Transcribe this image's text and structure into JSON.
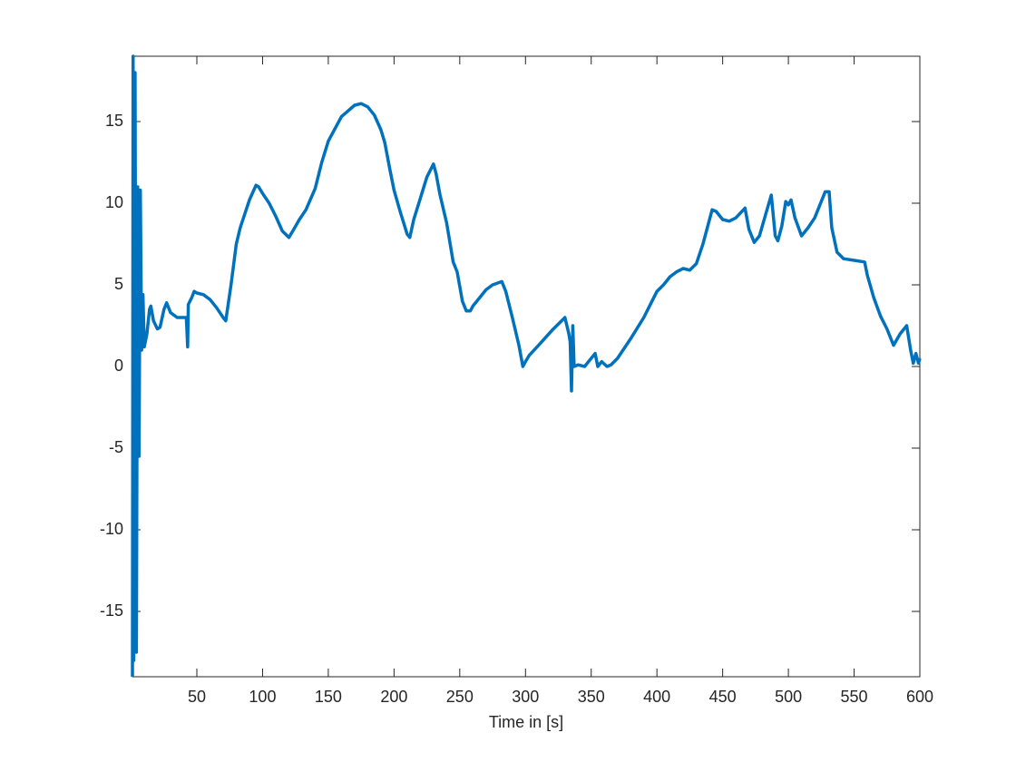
{
  "chart_data": {
    "type": "line",
    "xlabel": "Time in [s]",
    "color": "#0072BD",
    "x": [
      1,
      1.5,
      2,
      3,
      4,
      5,
      6,
      7,
      8,
      9,
      10,
      12,
      14,
      15,
      17,
      20,
      22,
      25,
      27,
      30,
      35,
      42,
      43,
      43.5,
      46,
      48,
      50,
      55,
      60,
      65,
      70,
      72,
      76,
      80,
      83,
      90,
      95,
      97,
      100,
      105,
      110,
      115,
      120,
      123,
      128,
      133,
      140,
      145,
      150,
      160,
      170,
      175,
      180,
      185,
      190,
      193,
      197,
      200,
      205,
      210,
      212,
      215,
      220,
      225,
      230,
      232,
      235,
      240,
      245,
      248,
      252,
      255,
      258,
      260,
      265,
      270,
      275,
      282,
      285,
      290,
      295,
      298,
      300,
      303,
      310,
      320,
      330,
      333,
      334,
      335,
      336,
      337,
      340,
      345,
      350,
      353,
      355,
      358,
      362,
      365,
      370,
      380,
      390,
      400,
      405,
      410,
      415,
      420,
      425,
      430,
      435,
      440,
      442,
      445,
      450,
      455,
      460,
      467,
      470,
      474,
      478,
      483,
      487,
      490,
      492,
      495,
      498,
      500,
      502,
      505,
      510,
      515,
      520,
      528,
      531,
      533,
      537,
      542,
      550,
      558,
      560,
      565,
      570,
      575,
      580,
      585,
      590,
      593,
      595,
      597,
      599,
      600
    ],
    "values": [
      -19,
      19,
      -18,
      18,
      -17.5,
      11,
      -5.5,
      10.8,
      1,
      4.4,
      1.2,
      2,
      3.5,
      3.7,
      2.8,
      2.3,
      2.4,
      3.5,
      3.9,
      3.3,
      3.0,
      3.0,
      1.2,
      3.8,
      4.2,
      4.6,
      4.5,
      4.4,
      4.1,
      3.6,
      3.0,
      2.8,
      5,
      7.5,
      8.5,
      10.2,
      11.1,
      11.0,
      10.6,
      10,
      9.2,
      8.3,
      7.9,
      8.3,
      9.0,
      9.6,
      10.9,
      12.5,
      13.8,
      15.3,
      16.0,
      16.1,
      15.9,
      15.4,
      14.5,
      13.7,
      12,
      10.8,
      9.4,
      8.1,
      7.9,
      9,
      10.3,
      11.6,
      12.4,
      11.8,
      10.5,
      8.8,
      6.4,
      5.8,
      4.0,
      3.4,
      3.4,
      3.7,
      4.2,
      4.7,
      5.0,
      5.2,
      4.6,
      3,
      1.3,
      0.0,
      0.3,
      0.7,
      1.3,
      2.2,
      3.0,
      2.0,
      1.5,
      -1.5,
      2.5,
      0,
      0.1,
      0,
      0.5,
      0.8,
      0.0,
      0.3,
      0.0,
      0.1,
      0.5,
      1.7,
      3,
      4.6,
      5.0,
      5.5,
      5.8,
      6.0,
      5.9,
      6.3,
      7.5,
      9.0,
      9.6,
      9.5,
      9.0,
      8.9,
      9.1,
      9.7,
      8.4,
      7.6,
      8.0,
      9.4,
      10.5,
      8.0,
      7.7,
      8.6,
      10.1,
      9.9,
      10.2,
      9.1,
      8.0,
      8.5,
      9.1,
      10.7,
      10.7,
      8.5,
      7.0,
      6.6,
      6.5,
      6.4,
      5.6,
      4.2,
      3.1,
      2.3,
      1.3,
      2.0,
      2.5,
      1.0,
      0.2,
      0.8,
      0.2,
      0.5
    ],
    "xlim": [
      1,
      600
    ],
    "xticks": [
      50,
      100,
      150,
      200,
      250,
      300,
      350,
      400,
      450,
      500,
      550,
      600
    ],
    "ylim": [
      -19,
      19
    ],
    "yticks": [
      -15,
      -10,
      -5,
      0,
      5,
      10,
      15
    ]
  }
}
